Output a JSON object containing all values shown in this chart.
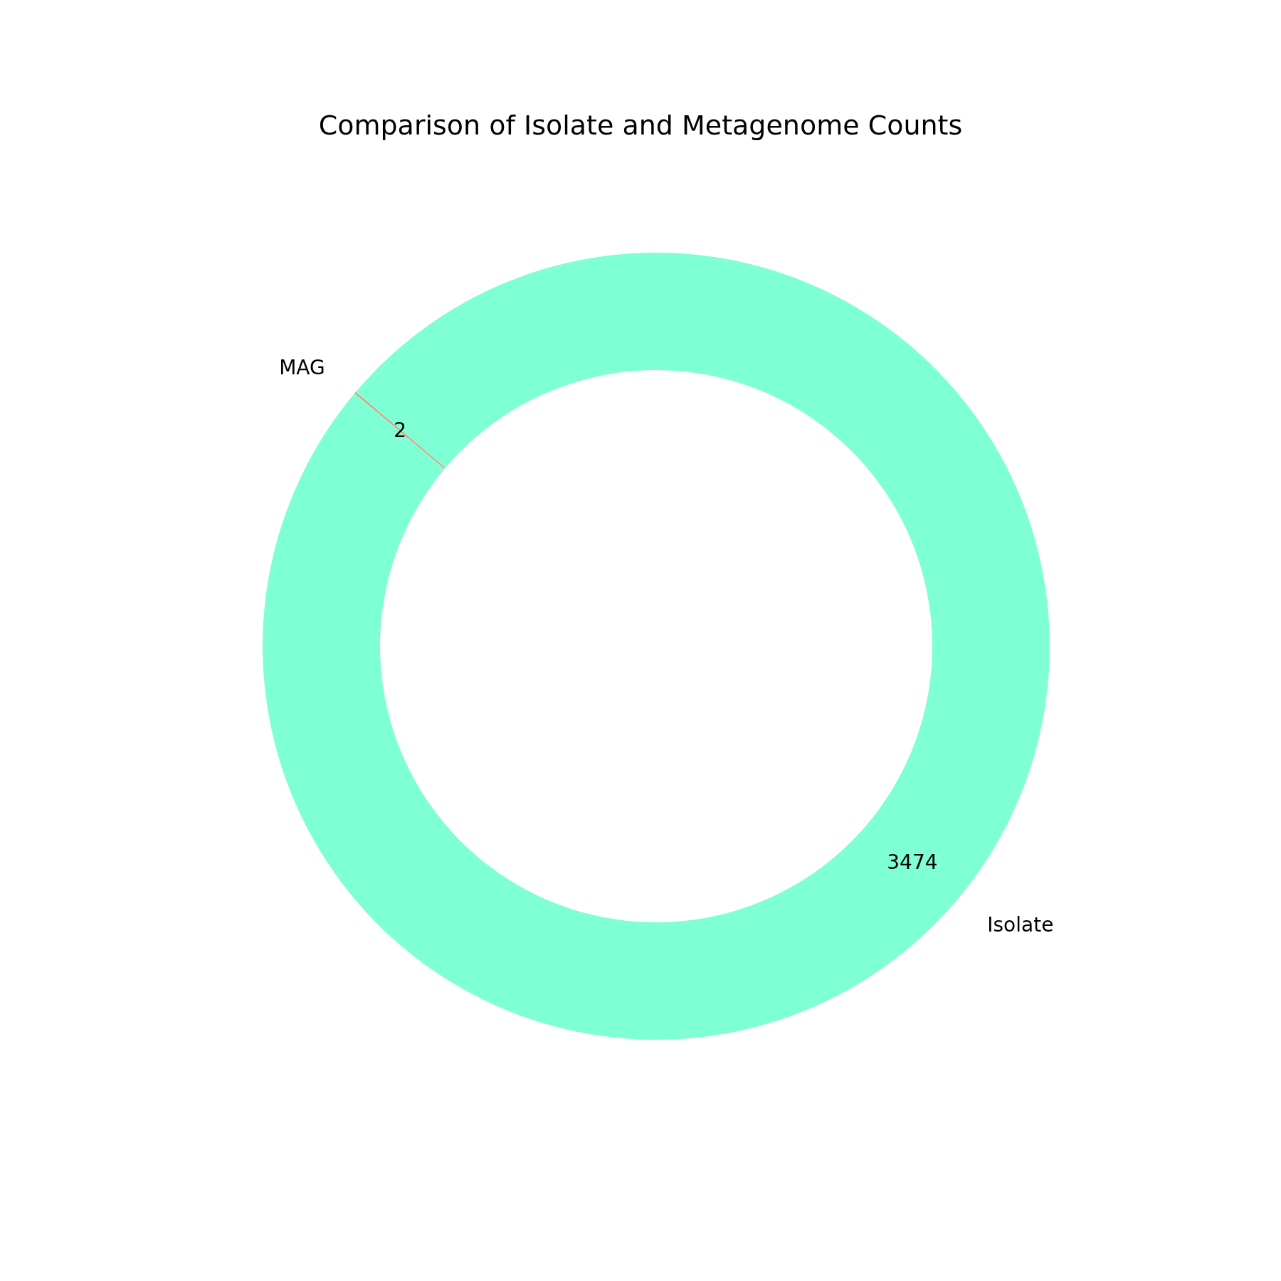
{
  "chart_data": {
    "type": "donut",
    "title": "Comparison of Isolate and Metagenome Counts",
    "categories": [
      "Isolate",
      "MAG"
    ],
    "values": [
      3474,
      2
    ],
    "colors": [
      "#7fffd4",
      "#fa8072"
    ],
    "data_labels": true
  }
}
